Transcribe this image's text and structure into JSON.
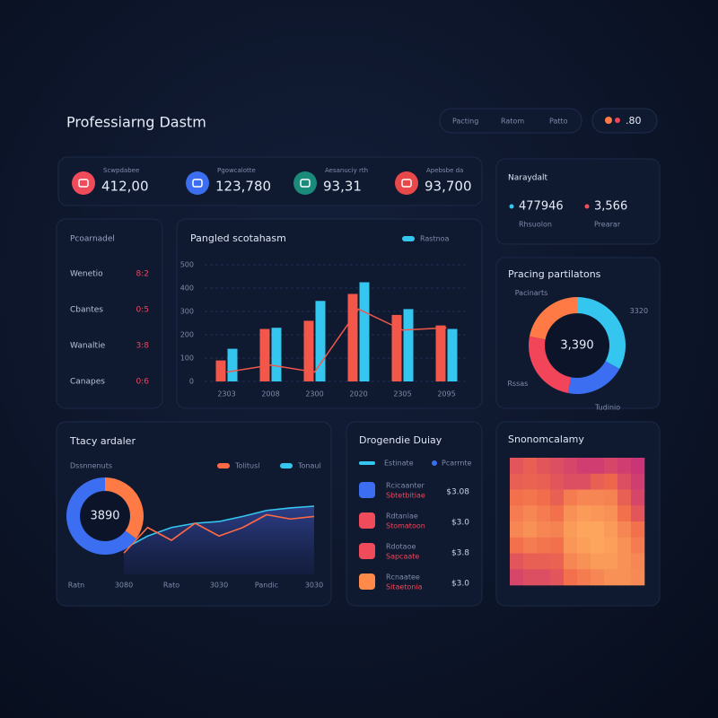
{
  "header": {
    "title": "Professiarng Dastm",
    "breadcrumbs": [
      "Pacting",
      "Ratom",
      "Patto"
    ],
    "badge": ".80"
  },
  "kpis": [
    {
      "label": "Scwpdabee",
      "value": "412,00",
      "color": "#ef4b5a"
    },
    {
      "label": "Pgowcalotte",
      "value": "123,780",
      "color": "#3b6ef0"
    },
    {
      "label": "Aesanuciy rth",
      "value": "93,31",
      "color": "#1a8a7a"
    },
    {
      "label": "Apebsbe da",
      "value": "93,700",
      "color": "#e9484a"
    }
  ],
  "summary": {
    "title": "Naraydalt",
    "items": [
      {
        "value": "477946",
        "label": "Rhsuolon",
        "color": "#35c6f0"
      },
      {
        "value": "3,566",
        "label": "Prearar",
        "color": "#f0505a"
      }
    ]
  },
  "ratios": {
    "title": "Pcoarnadel",
    "rows": [
      [
        "Wenetio",
        "8:2"
      ],
      [
        "Cbantes",
        "0:5"
      ],
      [
        "Wanaltie",
        "3:8"
      ],
      [
        "Canapes",
        "0:6"
      ]
    ]
  },
  "orders": {
    "title": "Drogendie Duiay",
    "legend": [
      "Estinate",
      "Pcarrnte"
    ],
    "rows": [
      {
        "label": "Rcicaanter",
        "detail": "Sbtetbitiae",
        "value": "$3.08",
        "color": "#3b6ef0"
      },
      {
        "label": "Rdtanlae",
        "detail": "Stomatoon",
        "value": "$3.0",
        "color": "#ef4b5a"
      },
      {
        "label": "Rdotaoe",
        "detail": "Sapcaate",
        "value": "$3.8",
        "color": "#ef4b5a"
      },
      {
        "label": "Rcnaatee",
        "detail": "Sitaetonia",
        "value": "$3.0",
        "color": "#ff8a4a"
      }
    ]
  },
  "chart_data": [
    {
      "type": "bar",
      "title": "Pangled scotahasm",
      "categories": [
        "2303",
        "2008",
        "2300",
        "2020",
        "2305",
        "2095"
      ],
      "series": [
        {
          "color": "#f2574a",
          "type": "bar",
          "values": [
            90,
            225,
            260,
            375,
            285,
            240
          ]
        },
        {
          "name": "Rastnoa",
          "color": "#35c6f0",
          "type": "bar",
          "values": [
            140,
            230,
            345,
            425,
            310,
            225
          ]
        },
        {
          "color": "#f2574a",
          "type": "line",
          "values": [
            40,
            70,
            40,
            310,
            220,
            230
          ]
        }
      ],
      "ylim": [
        0,
        500
      ],
      "yticks": [
        0,
        100,
        200,
        300,
        400,
        500
      ],
      "grid": true
    },
    {
      "type": "pie",
      "title": "Pracing partilatons",
      "categories": [
        "3320",
        "Tudinio",
        "Rssas",
        "Pacinarts"
      ],
      "values": [
        33,
        20,
        25,
        22
      ],
      "colors": [
        "#35c6f0",
        "#3b6ef0",
        "#f2455a",
        "#ff7a45"
      ],
      "center_label": "3,390"
    },
    {
      "type": "line",
      "title": "Ttacy ardaler",
      "subtitle": "Dssnnenuts",
      "categories": [
        "Ratn",
        null,
        "3080",
        null,
        "Rato",
        null,
        "3030",
        null,
        "Pandic",
        null,
        "3030"
      ],
      "series": [
        {
          "name": "Tolitusl",
          "color": "#ff6a45",
          "type": "line",
          "values": [
            null,
            null,
            25,
            55,
            40,
            60,
            45,
            55,
            70,
            65,
            68
          ]
        },
        {
          "name": "Tonaul",
          "color": "#35c6f0",
          "type": "area",
          "values": [
            null,
            null,
            30,
            45,
            55,
            60,
            62,
            68,
            75,
            78,
            80
          ]
        }
      ],
      "ylim": [
        0,
        100
      ]
    },
    {
      "type": "pie",
      "values": [
        35,
        65
      ],
      "colors": [
        "#ff7a45",
        "#3b6ef0"
      ],
      "center_label": "3890"
    },
    {
      "type": "heatmap",
      "title": "Snonomcalamy",
      "zlim": [
        0,
        1
      ],
      "colors": [
        "#3a1466",
        "#c8327a",
        "#f06a4a",
        "#ffb060"
      ],
      "values": [
        [
          0.55,
          0.6,
          0.55,
          0.5,
          0.45,
          0.4,
          0.4,
          0.45,
          0.4,
          0.35
        ],
        [
          0.6,
          0.62,
          0.6,
          0.55,
          0.5,
          0.5,
          0.6,
          0.65,
          0.5,
          0.4
        ],
        [
          0.7,
          0.72,
          0.68,
          0.6,
          0.75,
          0.8,
          0.8,
          0.78,
          0.6,
          0.45
        ],
        [
          0.75,
          0.8,
          0.75,
          0.7,
          0.85,
          0.9,
          0.88,
          0.85,
          0.7,
          0.55
        ],
        [
          0.8,
          0.85,
          0.8,
          0.78,
          0.9,
          0.95,
          0.95,
          0.9,
          0.8,
          0.7
        ],
        [
          0.7,
          0.75,
          0.72,
          0.7,
          0.88,
          0.92,
          0.95,
          0.92,
          0.85,
          0.75
        ],
        [
          0.55,
          0.6,
          0.6,
          0.62,
          0.8,
          0.85,
          0.9,
          0.9,
          0.85,
          0.8
        ],
        [
          0.45,
          0.5,
          0.5,
          0.55,
          0.7,
          0.75,
          0.8,
          0.85,
          0.85,
          0.82
        ]
      ]
    }
  ]
}
